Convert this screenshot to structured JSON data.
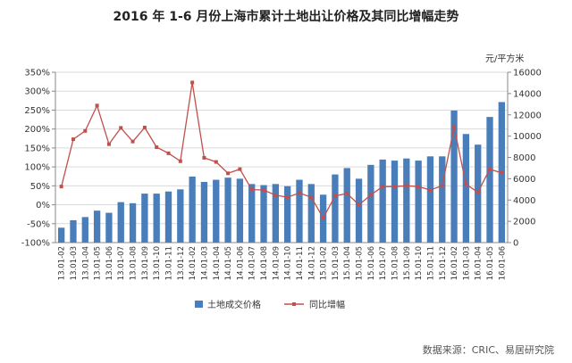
{
  "chart_data": {
    "type": "bar+line",
    "title": "2016 年 1-6 月份上海市累计土地出让价格及其同比增幅走势",
    "right_axis_unit": "元/平方米",
    "source": "数据来源：CRIC、易居研究院",
    "categories": [
      "13.01-02",
      "13.01-03",
      "13.01-04",
      "13.01-05",
      "13.01-06",
      "13.01-07",
      "13.01-08",
      "13.01-09",
      "13.01-10",
      "13.01-11",
      "13.01-12",
      "14.01-02",
      "14.01-03",
      "14.01-04",
      "14.01-05",
      "14.01-06",
      "14.01-07",
      "14.01-08",
      "14.01-09",
      "14.01-10",
      "14.01-11",
      "14.01-12",
      "15.01-02",
      "15.01-03",
      "15.01-04",
      "15.01-05",
      "15.01-06",
      "15.01-07",
      "15.01-08",
      "15.01-09",
      "15.01-10",
      "15.01-11",
      "15.01-12",
      "16.01-02",
      "16.01-03",
      "16.01-04",
      "16.01-05",
      "16.01-06"
    ],
    "left_axis": {
      "min": -100,
      "max": 350,
      "step": 50,
      "tick_labels": [
        "-100%",
        "-50%",
        "0%",
        "50%",
        "100%",
        "150%",
        "200%",
        "250%",
        "300%",
        "350%"
      ]
    },
    "right_axis": {
      "min": 0,
      "max": 16000,
      "step": 2000,
      "tick_labels": [
        "0",
        "2000",
        "4000",
        "6000",
        "8000",
        "10000",
        "12000",
        "14000",
        "16000"
      ]
    },
    "legend_position": "bottom",
    "series": [
      {
        "name": "土地成交价格",
        "type": "bar",
        "axis": "right",
        "color": "#4a7ebb",
        "values": [
          1400,
          2100,
          2400,
          3000,
          2800,
          3800,
          3700,
          4600,
          4600,
          4800,
          5000,
          6200,
          5700,
          5900,
          6100,
          6000,
          5500,
          5400,
          5500,
          5300,
          5900,
          5500,
          4500,
          6400,
          7000,
          6000,
          7300,
          7800,
          7700,
          7900,
          7700,
          8100,
          8100,
          12400,
          10200,
          9200,
          11800,
          13200
        ]
      },
      {
        "name": "同比增幅",
        "type": "line",
        "axis": "left",
        "color": "#c0504d",
        "values": [
          48,
          173,
          195,
          262,
          160,
          203,
          167,
          204,
          152,
          136,
          115,
          323,
          124,
          113,
          83,
          94,
          40,
          39,
          25,
          20,
          31,
          20,
          -35,
          23,
          30,
          0,
          26,
          48,
          48,
          50,
          48,
          39,
          50,
          205,
          54,
          33,
          94,
          84
        ]
      }
    ]
  }
}
